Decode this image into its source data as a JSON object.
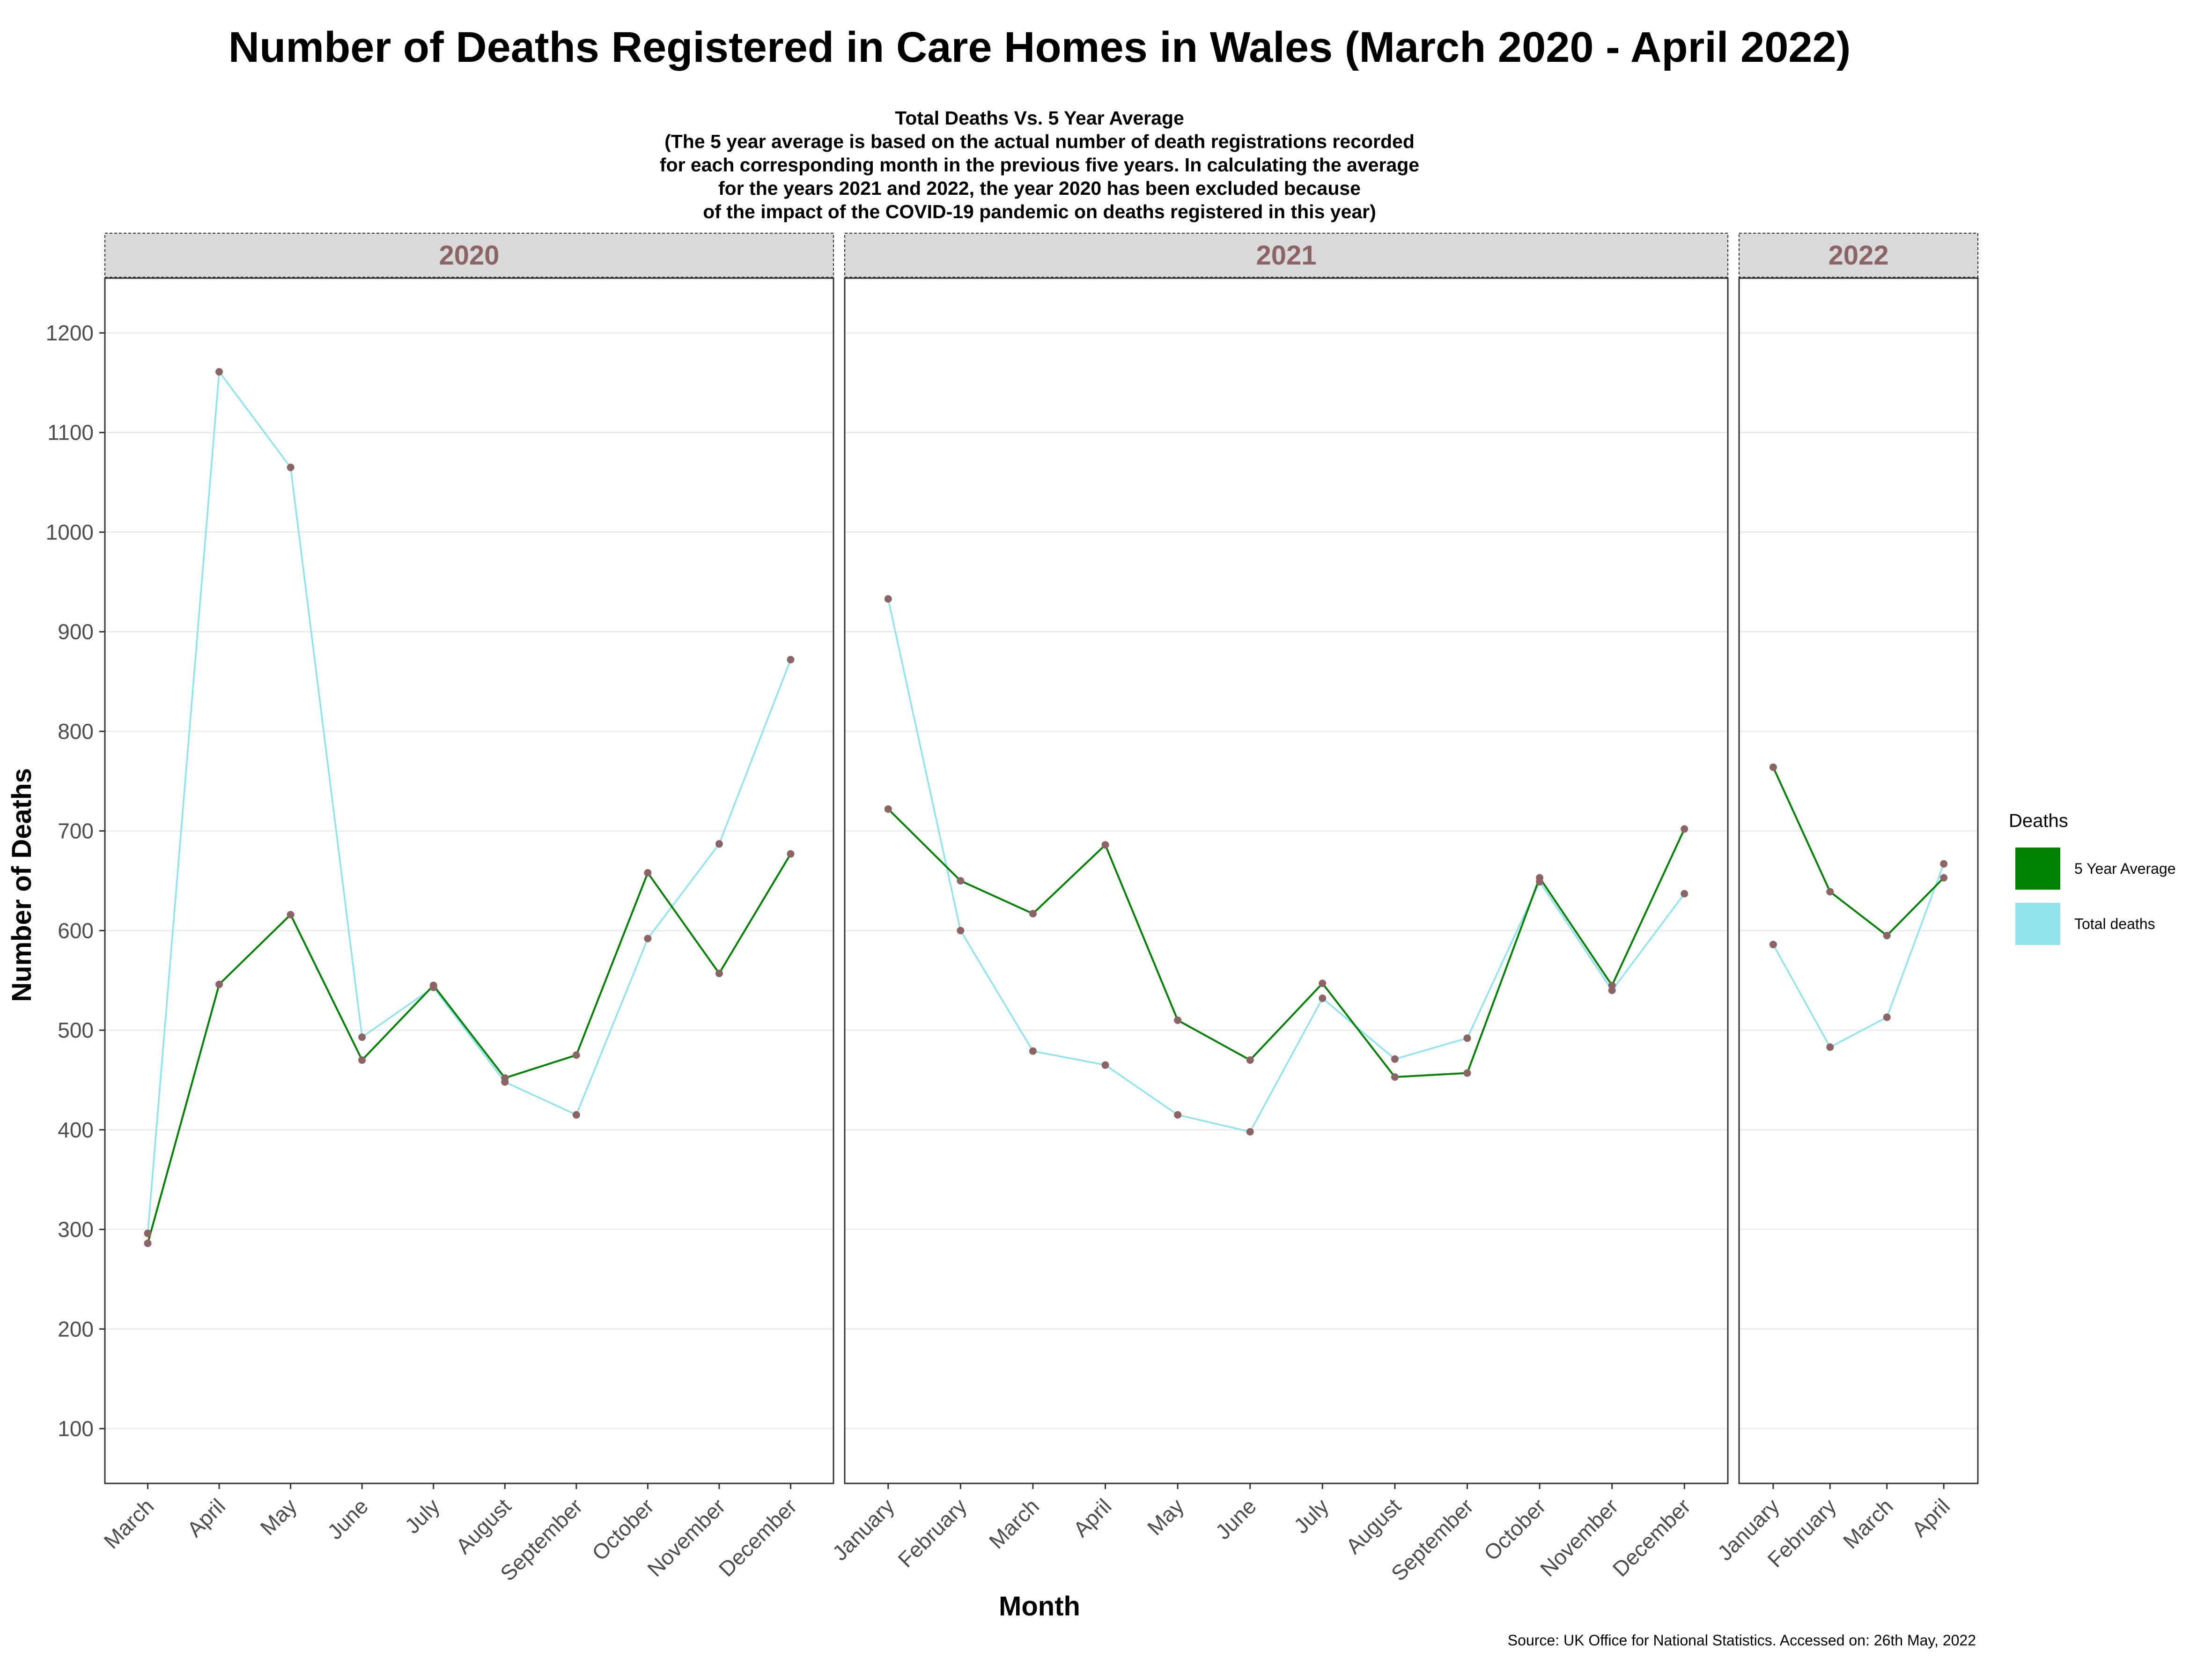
{
  "chart_data": {
    "type": "line",
    "title": "Number of Deaths Registered in Care Homes in Wales (March 2020 - April 2022)",
    "subtitle_lines": [
      "Total Deaths Vs. 5 Year Average",
      "(The 5 year average is based on the actual number of death registrations recorded",
      "for each corresponding month in the previous five years. In calculating the average",
      "for the years 2021 and 2022, the year 2020 has been excluded because",
      "of the impact of the COVID-19 pandemic on deaths registered in this year)"
    ],
    "xlabel": "Month",
    "ylabel": "Number of Deaths",
    "ylim": [
      45,
      1255
    ],
    "yticks": [
      100,
      200,
      300,
      400,
      500,
      600,
      700,
      800,
      900,
      1000,
      1100,
      1200
    ],
    "grid": true,
    "legend": {
      "title": "Deaths",
      "placement": "right",
      "items": [
        {
          "label": "5 Year Average",
          "color": "#008000"
        },
        {
          "label": "Total deaths",
          "color": "#8fe3ec"
        }
      ]
    },
    "colors": {
      "five_year_average": "#008000",
      "total_deaths": "#8fe3ec",
      "points": "#8b6566",
      "strip_text": "#8b6566",
      "strip_fill": "#d9d9d9"
    },
    "panels": [
      {
        "year": "2020",
        "months": [
          "March",
          "April",
          "May",
          "June",
          "July",
          "August",
          "September",
          "October",
          "November",
          "December"
        ],
        "series": [
          {
            "name": "5 Year Average",
            "values": [
              286,
              546,
              616,
              470,
              545,
              452,
              475,
              658,
              557,
              677
            ]
          },
          {
            "name": "Total deaths",
            "values": [
              296,
              1161,
              1065,
              493,
              543,
              448,
              415,
              592,
              687,
              872
            ]
          }
        ]
      },
      {
        "year": "2021",
        "months": [
          "January",
          "February",
          "March",
          "April",
          "May",
          "June",
          "July",
          "August",
          "September",
          "October",
          "November",
          "December"
        ],
        "series": [
          {
            "name": "5 Year Average",
            "values": [
              722,
              650,
              617,
              686,
              510,
              470,
              547,
              453,
              457,
              653,
              545,
              702
            ]
          },
          {
            "name": "Total deaths",
            "values": [
              933,
              600,
              479,
              465,
              415,
              398,
              532,
              471,
              492,
              649,
              540,
              637
            ]
          }
        ]
      },
      {
        "year": "2022",
        "months": [
          "January",
          "February",
          "March",
          "April"
        ],
        "series": [
          {
            "name": "5 Year Average",
            "values": [
              764,
              639,
              595,
              653
            ]
          },
          {
            "name": "Total deaths",
            "values": [
              586,
              483,
              513,
              667
            ]
          }
        ]
      }
    ],
    "caption": "Source: UK Office for National Statistics. Accessed on: 26th May, 2022"
  }
}
